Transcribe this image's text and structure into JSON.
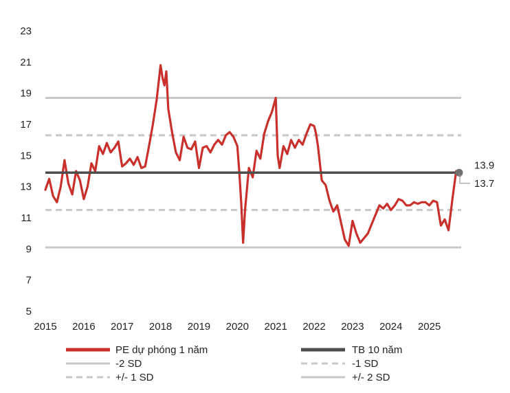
{
  "chart_data": {
    "type": "line",
    "title": "",
    "xlabel": "",
    "ylabel": "",
    "ylim": [
      5,
      23
    ],
    "yticks": [
      5,
      7,
      9,
      11,
      13,
      15,
      17,
      19,
      21,
      23
    ],
    "xlim": [
      2015.0,
      2025.83
    ],
    "xticks": [
      "2015",
      "2016",
      "2017",
      "2018",
      "2019",
      "2020",
      "2021",
      "2022",
      "2023",
      "2024",
      "2025"
    ],
    "grid": false,
    "legend_position": "bottom",
    "colors": {
      "pe": "#c9302c",
      "avg": "#4d4d4d",
      "sd1": "#c8c8c8",
      "sd2": "#c8c8c8",
      "marker": "#707070"
    },
    "reference_lines": {
      "mean": 13.9,
      "plus_1sd": 16.3,
      "minus_1sd": 11.5,
      "plus_2sd": 18.7,
      "minus_2sd": 9.1
    },
    "callouts": {
      "mean_label": "13.9",
      "last_label": "13.7",
      "last_value": 13.7
    },
    "legend": {
      "pe": "PE dự phóng 1 năm",
      "avg": "TB 10 năm",
      "minus2": "-2 SD",
      "minus1": "-1 SD",
      "pm1": "+/- 1 SD",
      "pm2": "+/- 2 SD"
    },
    "series": [
      {
        "name": "PE dự phóng 1 năm",
        "x": [
          2015.0,
          2015.1,
          2015.2,
          2015.3,
          2015.4,
          2015.5,
          2015.6,
          2015.7,
          2015.8,
          2015.9,
          2016.0,
          2016.1,
          2016.2,
          2016.3,
          2016.4,
          2016.5,
          2016.6,
          2016.7,
          2016.8,
          2016.9,
          2017.0,
          2017.1,
          2017.2,
          2017.3,
          2017.4,
          2017.5,
          2017.6,
          2017.7,
          2017.8,
          2017.9,
          2018.0,
          2018.05,
          2018.1,
          2018.15,
          2018.2,
          2018.3,
          2018.4,
          2018.5,
          2018.6,
          2018.7,
          2018.8,
          2018.9,
          2019.0,
          2019.1,
          2019.2,
          2019.3,
          2019.4,
          2019.5,
          2019.6,
          2019.7,
          2019.8,
          2019.9,
          2020.0,
          2020.05,
          2020.1,
          2020.15,
          2020.2,
          2020.3,
          2020.4,
          2020.5,
          2020.6,
          2020.7,
          2020.8,
          2020.9,
          2021.0,
          2021.05,
          2021.1,
          2021.2,
          2021.3,
          2021.4,
          2021.5,
          2021.6,
          2021.7,
          2021.8,
          2021.9,
          2022.0,
          2022.05,
          2022.1,
          2022.2,
          2022.3,
          2022.4,
          2022.5,
          2022.6,
          2022.7,
          2022.8,
          2022.9,
          2023.0,
          2023.1,
          2023.2,
          2023.3,
          2023.4,
          2023.5,
          2023.6,
          2023.7,
          2023.8,
          2023.9,
          2024.0,
          2024.1,
          2024.2,
          2024.3,
          2024.4,
          2024.5,
          2024.6,
          2024.7,
          2024.8,
          2024.9,
          2025.0,
          2025.1,
          2025.2,
          2025.3,
          2025.4,
          2025.5,
          2025.6,
          2025.7,
          2025.8
        ],
        "values": [
          12.8,
          13.5,
          12.4,
          12.0,
          13.0,
          14.7,
          13.2,
          12.5,
          14.0,
          13.4,
          12.2,
          13.0,
          14.5,
          14.0,
          15.6,
          15.1,
          15.8,
          15.2,
          15.5,
          15.9,
          14.3,
          14.5,
          14.8,
          14.4,
          14.9,
          14.2,
          14.3,
          15.6,
          17.0,
          18.6,
          20.8,
          20.0,
          19.5,
          20.4,
          18.0,
          16.5,
          15.2,
          14.7,
          16.2,
          15.5,
          15.4,
          15.9,
          14.2,
          15.5,
          15.6,
          15.2,
          15.7,
          16.0,
          15.7,
          16.3,
          16.5,
          16.2,
          15.6,
          14.0,
          12.0,
          9.4,
          11.5,
          14.2,
          13.6,
          15.3,
          14.8,
          16.4,
          17.2,
          17.8,
          18.7,
          15.0,
          14.2,
          15.6,
          15.1,
          16.0,
          15.5,
          16.0,
          15.7,
          16.4,
          17.0,
          16.9,
          16.4,
          15.6,
          13.4,
          13.1,
          12.1,
          11.4,
          11.8,
          10.7,
          9.6,
          9.2,
          10.8,
          10.0,
          9.4,
          9.7,
          10.0,
          10.6,
          11.2,
          11.8,
          11.6,
          11.9,
          11.5,
          11.8,
          12.2,
          12.1,
          11.8,
          11.8,
          12.0,
          11.9,
          12.0,
          12.0,
          11.8,
          12.1,
          12.0,
          10.5,
          10.9,
          10.2,
          12.2,
          14.0,
          13.7
        ]
      }
    ]
  }
}
